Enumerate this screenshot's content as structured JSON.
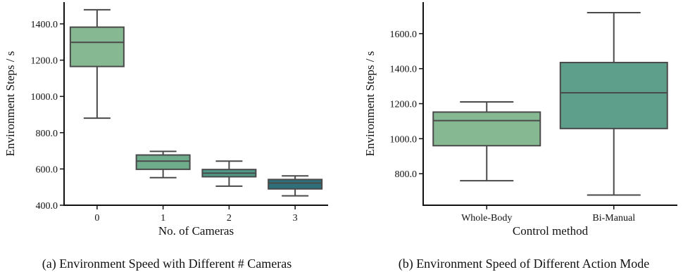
{
  "chart_data": [
    {
      "type": "box",
      "caption": "(a) Environment Speed with Different # Cameras",
      "xlabel": "No. of Cameras",
      "ylabel": "Environment Steps / s",
      "ylim": [
        400,
        1520
      ],
      "yticks": [
        400.0,
        600.0,
        800.0,
        1000.0,
        1200.0,
        1400.0
      ],
      "ytick_labels": [
        "400.0",
        "600.0",
        "800.0",
        "1000.0",
        "1200.0",
        "1400.0"
      ],
      "categories": [
        "0",
        "1",
        "2",
        "3"
      ],
      "boxes": [
        {
          "category": "0",
          "whisker_low": 880,
          "q1": 1165,
          "median": 1298,
          "q3": 1382,
          "whisker_high": 1478,
          "color": "#86b892"
        },
        {
          "category": "1",
          "whisker_low": 552,
          "q1": 598,
          "median": 643,
          "q3": 677,
          "whisker_high": 697,
          "color": "#6fac8c"
        },
        {
          "category": "2",
          "whisker_low": 505,
          "q1": 557,
          "median": 577,
          "q3": 597,
          "whisker_high": 643,
          "color": "#4e9a87"
        },
        {
          "category": "3",
          "whisker_low": 452,
          "q1": 490,
          "median": 522,
          "q3": 542,
          "whisker_high": 562,
          "color": "#2d7079"
        }
      ]
    },
    {
      "type": "box",
      "caption": "(b) Environment Speed of Different Action Mode",
      "xlabel": "Control method",
      "ylabel": "Environment Steps / s",
      "ylim": [
        620,
        1780
      ],
      "yticks": [
        800.0,
        1000.0,
        1200.0,
        1400.0,
        1600.0
      ],
      "ytick_labels": [
        "800.0",
        "1000.0",
        "1200.0",
        "1400.0",
        "1600.0"
      ],
      "categories": [
        "Whole-Body",
        "Bi-Manual"
      ],
      "boxes": [
        {
          "category": "Whole-Body",
          "whisker_low": 760,
          "q1": 960,
          "median": 1103,
          "q3": 1152,
          "whisker_high": 1210,
          "color": "#86b892"
        },
        {
          "category": "Bi-Manual",
          "whisker_low": 678,
          "q1": 1058,
          "median": 1262,
          "q3": 1435,
          "whisker_high": 1720,
          "color": "#5d9f8a"
        }
      ]
    }
  ]
}
